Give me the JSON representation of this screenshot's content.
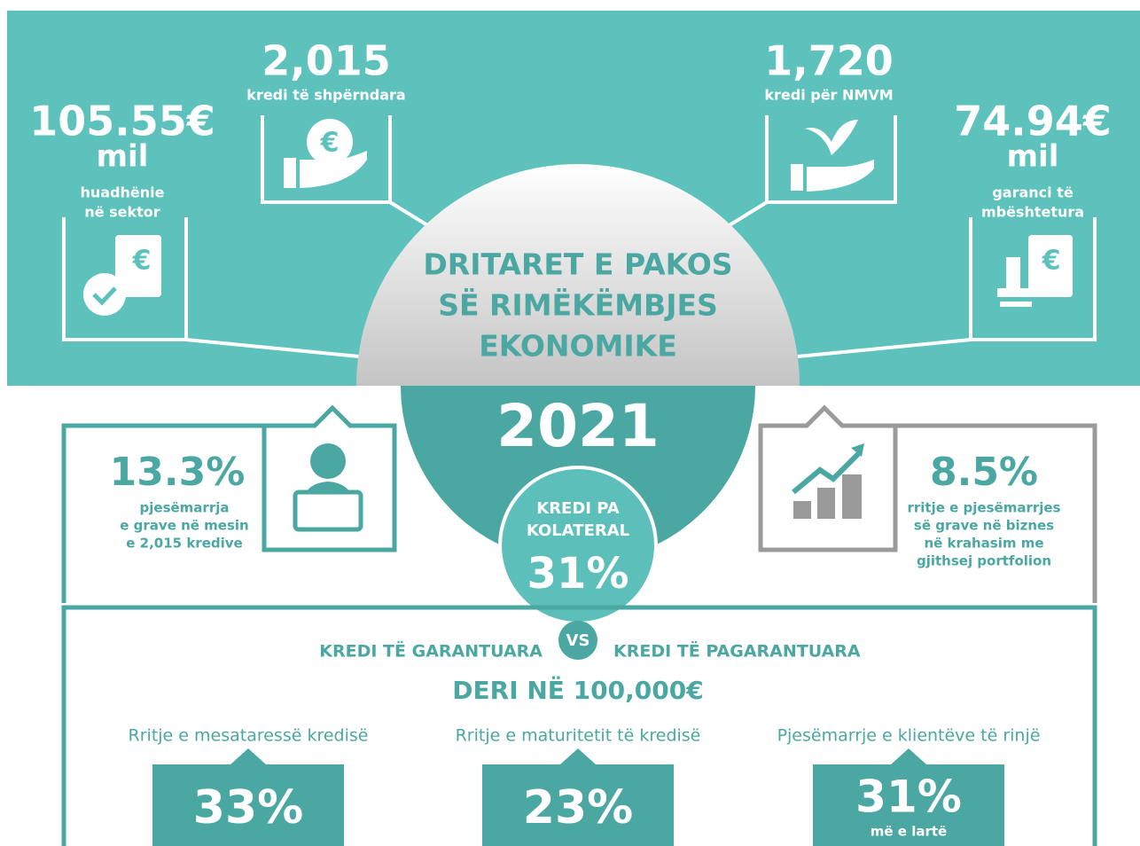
{
  "title": [
    "DRITARET E PAKOS",
    "SË RIMËKËMBJES",
    "EKONOMIKE"
  ],
  "year": "2021",
  "top_stats": [
    {
      "value": "105.55€",
      "unit": "mil",
      "label": [
        "huadhënie",
        "në sektor"
      ]
    },
    {
      "value": "2,015",
      "label": [
        "kredi të shpërndara"
      ]
    },
    {
      "value": "1,720",
      "label": [
        "kredi për NMVM"
      ]
    },
    {
      "value": "74.94€",
      "unit": "mil",
      "label": [
        "garanci të",
        "mbështetura"
      ]
    }
  ],
  "women_stats": [
    {
      "value": "13.3%",
      "label": [
        "pjesëmarrja",
        "e grave në mesin",
        "e 2,015 kredive"
      ]
    },
    {
      "value": "8.5%",
      "label": [
        "rritje e pjesëmarrjes",
        "së grave në biznes",
        "në krahasim me",
        "gjithsej portfolion"
      ]
    }
  ],
  "collateral": {
    "label": [
      "KREDI PA",
      "KOLATERAL"
    ],
    "value": "31%"
  },
  "comparison": {
    "left": "KREDI TË GARANTUARA",
    "vs": "VS",
    "right": "KREDI TË PAGARANTUARA",
    "subtitle": "DERI NË 100,000€"
  },
  "metrics": [
    {
      "label": "Rritje e mesataressë kredisë",
      "value": "33%"
    },
    {
      "label": "Rritje e maturitetit të kredisë",
      "value": "23%"
    },
    {
      "label": "Pjesëmarrje e klientëve të rinjë",
      "value": "31%",
      "note": "më e lartë"
    }
  ]
}
